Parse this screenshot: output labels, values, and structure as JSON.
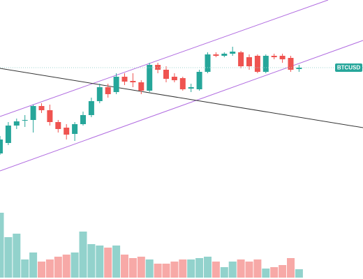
{
  "chart_data": {
    "type": "candlestick",
    "symbol": "BTCUSD",
    "ylim": [
      0,
      400
    ],
    "y2lim": [
      0,
      400
    ],
    "up_color": "#26a69a",
    "down_color": "#ef5350",
    "volume_up_color": "#92d2cc",
    "volume_down_color": "#f7a9a7",
    "open": [
      180,
      195,
      220,
      227,
      228,
      248,
      242,
      225,
      217,
      208,
      222,
      235,
      255,
      275,
      268,
      290,
      284,
      282,
      270,
      307,
      300,
      290,
      288,
      273,
      272,
      297,
      322,
      320,
      323,
      325,
      318,
      320,
      297,
      320,
      320,
      317,
      301
    ],
    "high": [
      205,
      225,
      230,
      235,
      250,
      252,
      250,
      228,
      222,
      225,
      240,
      260,
      280,
      280,
      295,
      295,
      295,
      285,
      310,
      310,
      305,
      295,
      290,
      280,
      300,
      325,
      325,
      325,
      333,
      327,
      322,
      322,
      322,
      323,
      323,
      320,
      307
    ],
    "low": [
      178,
      192,
      215,
      218,
      210,
      238,
      220,
      210,
      200,
      198,
      220,
      232,
      252,
      260,
      265,
      278,
      275,
      265,
      268,
      295,
      282,
      282,
      270,
      268,
      270,
      295,
      318,
      318,
      320,
      302,
      300,
      295,
      295,
      315,
      310,
      297,
      297
    ],
    "close": [
      200,
      220,
      226,
      228,
      248,
      242,
      225,
      215,
      207,
      222,
      235,
      255,
      275,
      265,
      290,
      283,
      282,
      270,
      307,
      300,
      287,
      285,
      272,
      275,
      297,
      322,
      320,
      323,
      326,
      305,
      305,
      297,
      320,
      318,
      315,
      300,
      303
    ],
    "volume": [
      93,
      58,
      63,
      26,
      36,
      23,
      26,
      30,
      33,
      36,
      66,
      48,
      46,
      43,
      46,
      33,
      28,
      30,
      26,
      20,
      20,
      23,
      26,
      26,
      28,
      30,
      23,
      15,
      23,
      26,
      23,
      26,
      13,
      15,
      18,
      28,
      12
    ]
  }
}
